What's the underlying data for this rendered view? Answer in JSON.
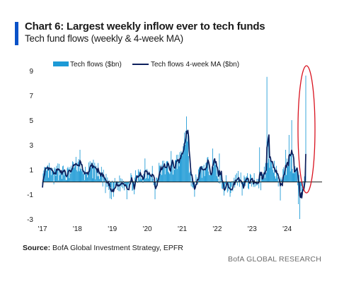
{
  "colors": {
    "accent": "#0a52c8",
    "bars": "#1d9ad6",
    "ma_line": "#0c1f5c",
    "highlight": "#d9121f",
    "axis": "#222222",
    "source_text": "#1a1a1a",
    "brand_text": "#6b6b6b"
  },
  "header": {
    "title": "Chart 6: Largest weekly inflow ever to tech funds",
    "subtitle": "Tech fund flows (weekly & 4-week MA)"
  },
  "footer": {
    "source_label": "Source:",
    "source_text": " BofA Global Investment Strategy, EPFR",
    "brand": "BofA GLOBAL RESEARCH"
  },
  "chart_data": {
    "type": "bar",
    "x": [
      "'17",
      "'18",
      "'19",
      "'20",
      "'21",
      "'22",
      "'23",
      "'24"
    ],
    "x_label_dates": [
      "2017-01-01",
      "2018-01-01",
      "2019-01-01",
      "2020-01-01",
      "2021-01-01",
      "2022-01-01",
      "2023-01-01",
      "2024-01-01"
    ],
    "x_range": [
      "2017-01-01",
      "2024-12-31"
    ],
    "ylim": [
      -3,
      9
    ],
    "y_ticks": [
      9,
      7,
      5,
      3,
      1,
      -1,
      -3
    ],
    "grid": false,
    "legend_position": "top",
    "highlight": {
      "shape": "ellipse",
      "around": "latest weeks (2024)"
    },
    "series": [
      {
        "name": "Tech flows ($bn)",
        "type": "bar",
        "anchors": [
          [
            "2017-01-01",
            0.3
          ],
          [
            "2017-03-01",
            0.9
          ],
          [
            "2017-05-01",
            0.4
          ],
          [
            "2017-07-01",
            1.0
          ],
          [
            "2017-09-01",
            0.5
          ],
          [
            "2017-11-01",
            0.9
          ],
          [
            "2018-01-15",
            1.6
          ],
          [
            "2018-02-15",
            0.4
          ],
          [
            "2018-04-01",
            0.8
          ],
          [
            "2018-06-01",
            1.0
          ],
          [
            "2018-08-01",
            0.9
          ],
          [
            "2018-10-15",
            0.1
          ],
          [
            "2018-12-15",
            -0.8
          ],
          [
            "2019-02-01",
            -0.3
          ],
          [
            "2019-04-01",
            -0.1
          ],
          [
            "2019-06-01",
            0.1
          ],
          [
            "2019-08-01",
            0.0
          ],
          [
            "2019-10-01",
            0.4
          ],
          [
            "2019-12-01",
            0.7
          ],
          [
            "2020-02-01",
            1.0
          ],
          [
            "2020-03-15",
            -0.6
          ],
          [
            "2020-05-01",
            0.9
          ],
          [
            "2020-07-01",
            1.2
          ],
          [
            "2020-09-01",
            1.2
          ],
          [
            "2020-11-01",
            1.5
          ],
          [
            "2021-01-01",
            2.4
          ],
          [
            "2021-02-10",
            4.6
          ],
          [
            "2021-03-15",
            1.0
          ],
          [
            "2021-05-01",
            -0.5
          ],
          [
            "2021-06-15",
            0.5
          ],
          [
            "2021-08-01",
            1.0
          ],
          [
            "2021-10-01",
            1.3
          ],
          [
            "2021-12-01",
            1.3
          ],
          [
            "2022-02-01",
            0.3
          ],
          [
            "2022-04-01",
            -0.2
          ],
          [
            "2022-06-01",
            -0.4
          ],
          [
            "2022-08-01",
            0.4
          ],
          [
            "2022-10-01",
            0.1
          ],
          [
            "2022-12-01",
            0.0
          ],
          [
            "2023-02-01",
            0.2
          ],
          [
            "2023-04-01",
            0.0
          ],
          [
            "2023-06-01",
            1.3
          ],
          [
            "2023-07-15",
            1.5
          ],
          [
            "2023-09-01",
            0.8
          ],
          [
            "2023-10-15",
            -0.3
          ],
          [
            "2023-12-01",
            0.9
          ],
          [
            "2024-02-01",
            1.6
          ],
          [
            "2024-03-15",
            1.2
          ],
          [
            "2024-05-01",
            0.2
          ],
          [
            "2024-06-10",
            -0.5
          ],
          [
            "2024-07-05",
            0.3
          ]
        ],
        "spikes": [
          [
            "2017-02-01",
            1.2
          ],
          [
            "2017-06-10",
            1.5
          ],
          [
            "2017-11-20",
            1.6
          ],
          [
            "2018-01-25",
            2.6
          ],
          [
            "2018-06-15",
            1.8
          ],
          [
            "2018-10-20",
            -0.9
          ],
          [
            "2018-12-20",
            -1.4
          ],
          [
            "2019-01-10",
            -1.2
          ],
          [
            "2019-06-01",
            -1.4
          ],
          [
            "2019-08-15",
            -1.0
          ],
          [
            "2019-12-10",
            1.9
          ],
          [
            "2020-02-20",
            1.3
          ],
          [
            "2020-03-20",
            -1.4
          ],
          [
            "2020-09-05",
            2.5
          ],
          [
            "2020-12-15",
            2.2
          ],
          [
            "2021-01-28",
            3.0
          ],
          [
            "2021-02-12",
            5.3
          ],
          [
            "2021-02-25",
            4.0
          ],
          [
            "2021-05-10",
            -1.2
          ],
          [
            "2021-11-15",
            2.7
          ],
          [
            "2022-01-20",
            2.3
          ],
          [
            "2022-03-10",
            -1.1
          ],
          [
            "2022-05-15",
            -1.2
          ],
          [
            "2022-09-20",
            -1.1
          ],
          [
            "2023-03-20",
            2.8
          ],
          [
            "2023-06-05",
            8.5
          ],
          [
            "2023-06-20",
            3.3
          ],
          [
            "2023-10-20",
            -1.5
          ],
          [
            "2023-12-15",
            2.6
          ],
          [
            "2024-01-20",
            3.8
          ],
          [
            "2024-02-15",
            5.0
          ],
          [
            "2024-04-25",
            -1.8
          ],
          [
            "2024-05-15",
            -3.0
          ],
          [
            "2024-07-15",
            8.6
          ]
        ]
      },
      {
        "name": "Tech flows 4-week MA ($bn)",
        "type": "line",
        "note": "4-week moving average of the weekly flows series"
      }
    ]
  }
}
